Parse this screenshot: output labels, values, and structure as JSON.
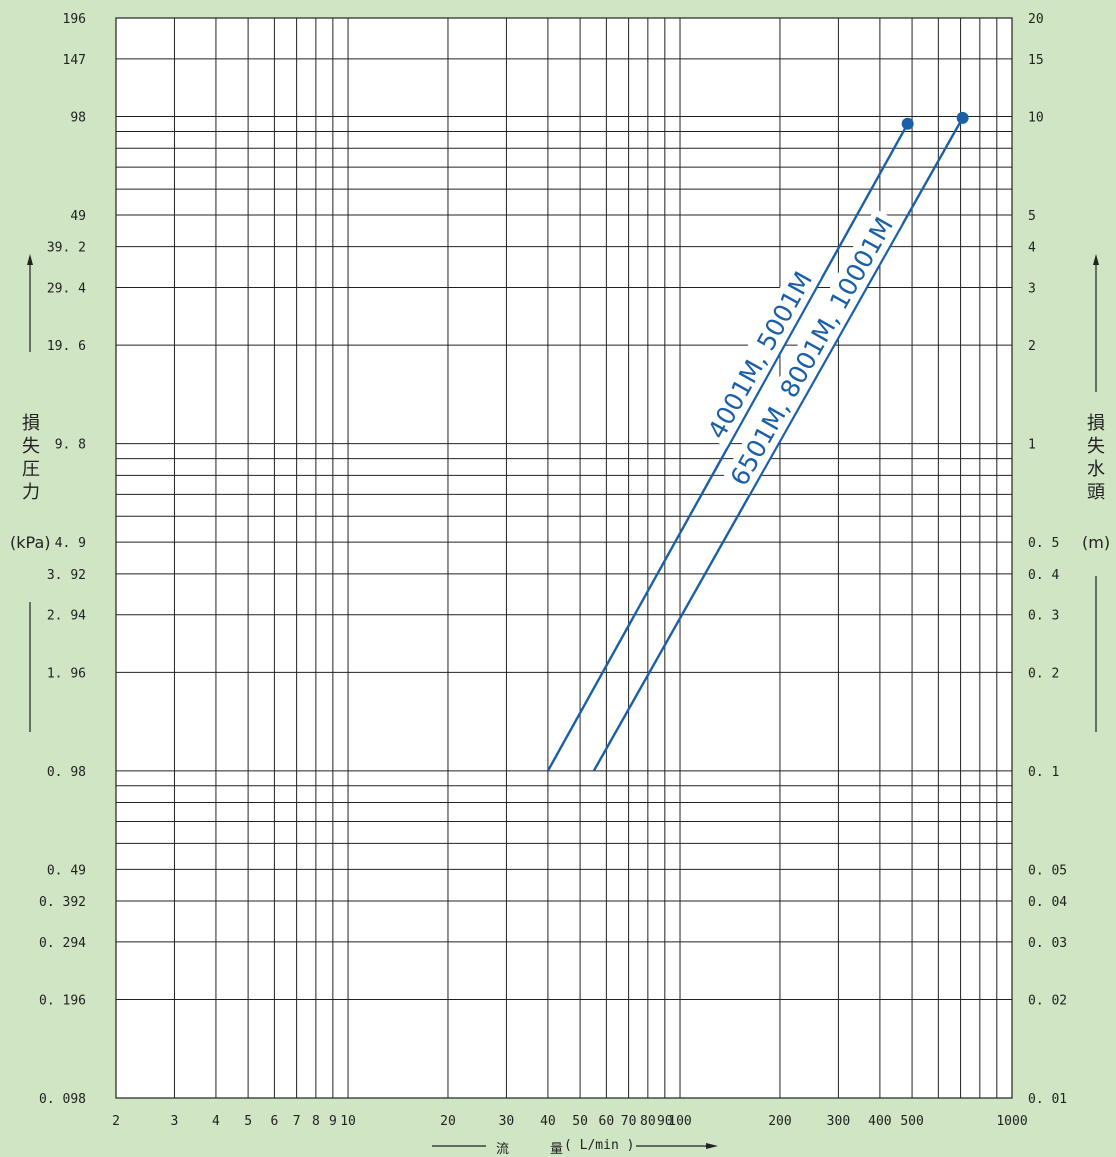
{
  "left_axis": {
    "chars": [
      "損",
      "失",
      "圧",
      "力"
    ],
    "unit": "(kPa)"
  },
  "right_axis": {
    "chars": [
      "損",
      "失",
      "水",
      "頭"
    ],
    "unit": "(m)"
  },
  "x_axis": {
    "title_char1": "流",
    "title_char2": "量",
    "title_unit": "( L/min )"
  },
  "chart_data": {
    "type": "line",
    "x_scale": "log",
    "y_scale": "log",
    "grid": true,
    "xlim": [
      2,
      1000
    ],
    "ylim_kpa": [
      0.098,
      196
    ],
    "ylim_m": [
      0.01,
      20
    ],
    "x_tick_labels": [
      "2",
      "3",
      "4",
      "5",
      "6",
      "7",
      "8",
      "9",
      "10",
      "20",
      "30",
      "40",
      "50",
      "60",
      "70",
      "80",
      "90",
      "100",
      "200",
      "300",
      "400",
      "500",
      "1000"
    ],
    "x_tick_values": [
      2,
      3,
      4,
      5,
      6,
      7,
      8,
      9,
      10,
      20,
      30,
      40,
      50,
      60,
      70,
      80,
      90,
      100,
      200,
      300,
      400,
      500,
      1000
    ],
    "y_left_tick_labels": [
      "196",
      "147",
      "98",
      "49",
      "39. 2",
      "29. 4",
      "19. 6",
      "9. 8",
      "4. 9",
      "3. 92",
      "2. 94",
      "1. 96",
      "0. 98",
      "0. 49",
      "0. 392",
      "0. 294",
      "0. 196",
      "0. 098"
    ],
    "y_right_tick_labels": [
      "20",
      "15",
      "10",
      "5",
      "4",
      "3",
      "2",
      "1",
      "0. 5",
      "0. 4",
      "0. 3",
      "0. 2",
      "0. 1",
      "0. 05",
      "0. 04",
      "0. 03",
      "0. 02",
      "0. 01"
    ],
    "y_tick_values_m": [
      20,
      15,
      10,
      5,
      4,
      3,
      2,
      1,
      0.5,
      0.4,
      0.3,
      0.2,
      0.1,
      0.05,
      0.04,
      0.03,
      0.02,
      0.01
    ],
    "series": [
      {
        "name": "4001M, 5001M",
        "color": "#1a5fa8",
        "x": [
          40,
          485
        ],
        "y_m": [
          0.1,
          9.5
        ]
      },
      {
        "name": "6501M, 8001M, 10001M",
        "color": "#1a5fa8",
        "x": [
          55,
          710
        ],
        "y_m": [
          0.1,
          9.9
        ]
      }
    ]
  }
}
